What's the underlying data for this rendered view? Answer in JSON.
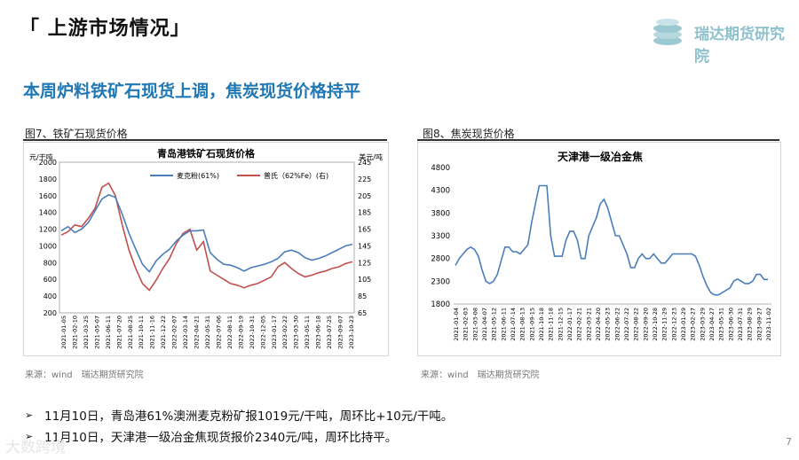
{
  "header": {
    "title": "「 上游市场情况」",
    "logo_text": "瑞达期货研究院"
  },
  "headline": "本周炉料铁矿石现货上调，焦炭现货价格持平",
  "figures": {
    "left": {
      "caption": "图7、铁矿石现货价格",
      "source": "来源：wind　瑞达期货研究院"
    },
    "right": {
      "caption": "图8、焦炭现货价格",
      "source": "来源：wind　瑞达期货研究院"
    }
  },
  "bullets": [
    "11月10日，青岛港61%澳洲麦克粉矿报1019元/干吨，周环比+10元/干吨。",
    "11月10日，天津港一级冶金焦现货报价2340元/吨，周环比持平。"
  ],
  "page_number": "7",
  "watermark": "大数跨境",
  "colors": {
    "series_blue": "#4a7ebb",
    "series_red": "#c0504d",
    "coke_line": "#4a7ebb",
    "headline": "#1f78b4"
  },
  "chart_data": [
    {
      "type": "line",
      "title": "青岛港铁矿石现货价格",
      "ylabel_left": "元/干吨",
      "ylabel_right": "美元/吨",
      "ylim_left": [
        200,
        2000
      ],
      "ylim_right": [
        65,
        245
      ],
      "yticks_left": [
        200,
        400,
        600,
        800,
        1000,
        1200,
        1400,
        1600,
        1800,
        2000
      ],
      "yticks_right": [
        65,
        85,
        105,
        125,
        145,
        165,
        185,
        205,
        225,
        245
      ],
      "legend": "top",
      "x_labels": [
        "2021-01-05",
        "2021-02-10",
        "2021-03-25",
        "2021-05-07",
        "2021-06-11",
        "2021-07-20",
        "2021-08-25",
        "2021-10-11",
        "2021-11-16",
        "2021-12-22",
        "2022-02-07",
        "2022-03-14",
        "2022-04-21",
        "2022-05-31",
        "2022-07-06",
        "2022-08-11",
        "2022-09-19",
        "2022-10-31",
        "2022-12-05",
        "2023-01-17",
        "2023-02-22",
        "2023-03-30",
        "2023-05-11",
        "2023-06-18",
        "2023-07-25",
        "2023-09-07",
        "2023-10-23"
      ],
      "series": [
        {
          "name": "麦克粉(61%)",
          "axis": "left",
          "values": [
            1180,
            1230,
            1160,
            1200,
            1280,
            1420,
            1560,
            1610,
            1580,
            1380,
            1150,
            960,
            780,
            690,
            820,
            900,
            960,
            1060,
            1130,
            1180,
            1180,
            1190,
            920,
            840,
            780,
            770,
            740,
            700,
            740,
            760,
            780,
            810,
            850,
            930,
            950,
            920,
            860,
            830,
            850,
            880,
            920,
            960,
            1000,
            1019
          ]
        },
        {
          "name": "普氏（62%Fe）(右)",
          "axis": "right",
          "values": [
            158,
            162,
            170,
            168,
            178,
            190,
            215,
            220,
            205,
            170,
            140,
            118,
            100,
            92,
            104,
            118,
            130,
            148,
            160,
            165,
            140,
            150,
            115,
            110,
            105,
            100,
            98,
            95,
            98,
            100,
            104,
            108,
            120,
            125,
            118,
            112,
            108,
            110,
            113,
            115,
            118,
            120,
            124,
            126
          ]
        }
      ]
    },
    {
      "type": "line",
      "title": "天津港一级冶金焦",
      "ylim": [
        1800,
        4800
      ],
      "yticks": [
        1800,
        2300,
        2800,
        3300,
        3800,
        4300,
        4800
      ],
      "x_labels": [
        "2021-01-04",
        "2021-02-03",
        "2021-03-08",
        "2021-04-07",
        "2021-05-12",
        "2021-06-11",
        "2021-07-14",
        "2021-08-13",
        "2021-09-15",
        "2021-10-18",
        "2021-11-18",
        "2021-12-15",
        "2022-01-17",
        "2022-02-21",
        "2022-03-21",
        "2022-04-20",
        "2022-05-23",
        "2022-06-22",
        "2022-07-22",
        "2022-08-22",
        "2022-09-20",
        "2022-10-28",
        "2022-11-29",
        "2022-12-23",
        "2023-01-29",
        "2023-02-27",
        "2023-03-29",
        "2023-04-27",
        "2023-05-31",
        "2023-06-30",
        "2023-07-31",
        "2023-08-29",
        "2023-09-27",
        "2023-11-02"
      ],
      "series": [
        {
          "name": "一级冶金焦",
          "values": [
            2650,
            2800,
            2900,
            3000,
            3050,
            3000,
            2850,
            2550,
            2300,
            2250,
            2300,
            2450,
            2750,
            3050,
            3050,
            2950,
            2950,
            2900,
            3000,
            3100,
            3600,
            4000,
            4400,
            4400,
            4400,
            3300,
            2850,
            2850,
            2850,
            3200,
            3400,
            3400,
            3200,
            2800,
            2800,
            3300,
            3500,
            3700,
            4000,
            4100,
            3900,
            3600,
            3300,
            3300,
            3100,
            2900,
            2600,
            2600,
            2800,
            2900,
            2800,
            2800,
            2900,
            2800,
            2700,
            2700,
            2800,
            2900,
            2900,
            2900,
            2900,
            2900,
            2900,
            2850,
            2650,
            2400,
            2200,
            2050,
            2000,
            2000,
            2050,
            2100,
            2150,
            2300,
            2350,
            2300,
            2250,
            2250,
            2300,
            2450,
            2450,
            2340,
            2340
          ]
        }
      ]
    }
  ]
}
